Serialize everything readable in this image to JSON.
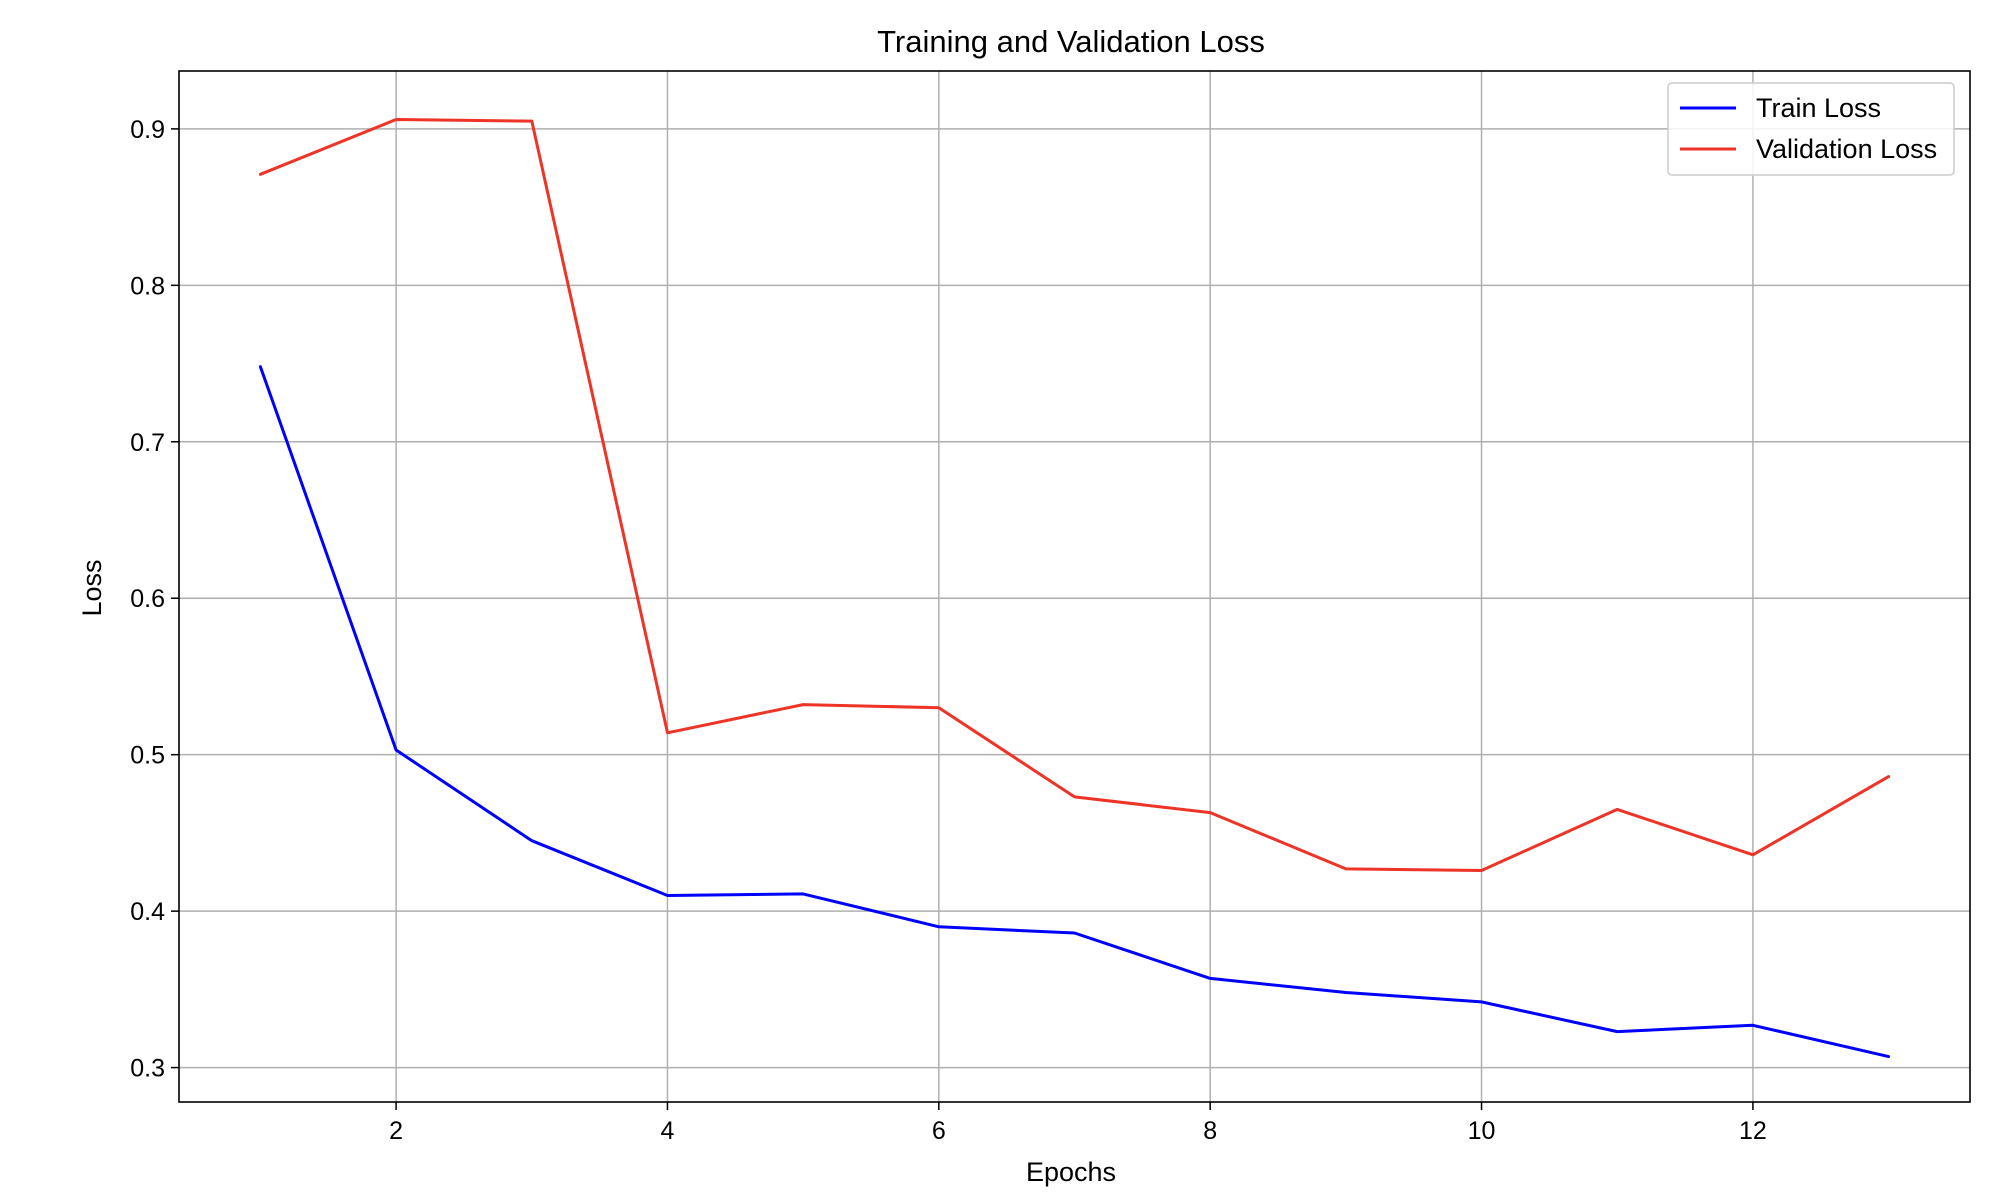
{
  "chart_data": {
    "type": "line",
    "title": "Training and Validation Loss",
    "xlabel": "Epochs",
    "ylabel": "Loss",
    "x": [
      1,
      2,
      3,
      4,
      5,
      6,
      7,
      8,
      9,
      10,
      11,
      12,
      13
    ],
    "series": [
      {
        "name": "Train Loss",
        "color": "#0000ff",
        "values": [
          0.748,
          0.503,
          0.445,
          0.41,
          0.411,
          0.39,
          0.386,
          0.357,
          0.348,
          0.342,
          0.323,
          0.327,
          0.307
        ]
      },
      {
        "name": "Validation Loss",
        "color": "#ee3327",
        "values": [
          0.871,
          0.906,
          0.905,
          0.514,
          0.532,
          0.53,
          0.473,
          0.463,
          0.427,
          0.426,
          0.465,
          0.436,
          0.486
        ]
      }
    ],
    "xlim": [
      0.4,
      13.6
    ],
    "ylim": [
      0.278,
      0.937
    ],
    "xticks": [
      2,
      4,
      6,
      8,
      10,
      12
    ],
    "yticks": [
      0.3,
      0.4,
      0.5,
      0.6,
      0.7,
      0.8,
      0.9
    ],
    "xtick_labels": [
      "2",
      "4",
      "6",
      "8",
      "10",
      "12"
    ],
    "ytick_labels": [
      "0.3",
      "0.4",
      "0.5",
      "0.6",
      "0.7",
      "0.8",
      "0.9"
    ],
    "grid": true,
    "legend_position": "top-right"
  }
}
